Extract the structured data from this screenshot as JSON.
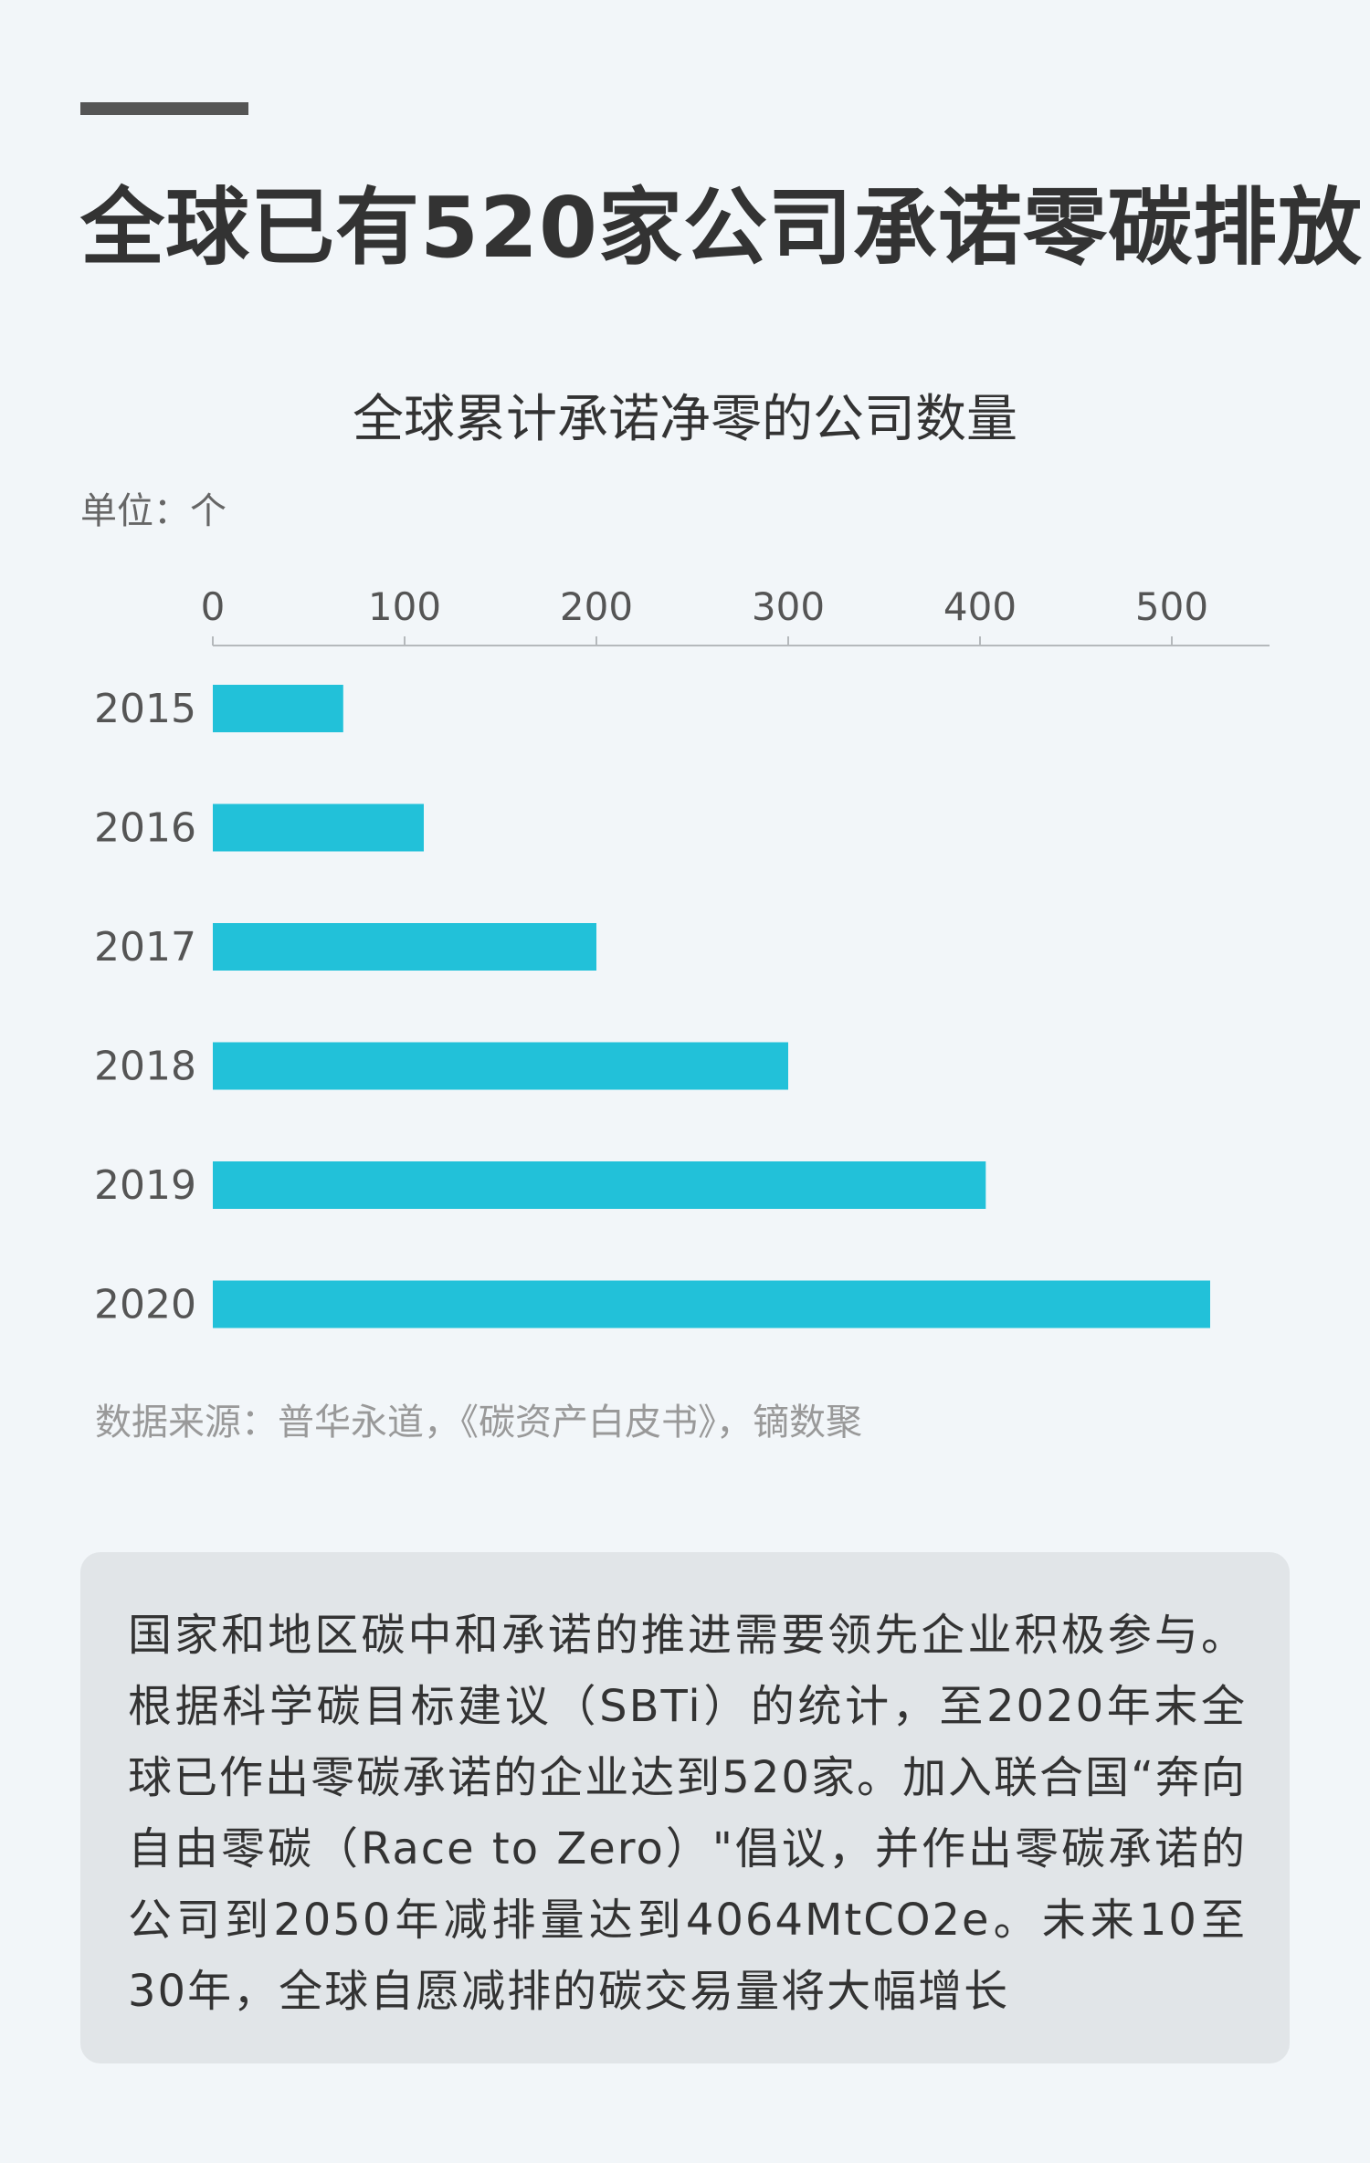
{
  "title": "全球已有520家公司承诺零碳排放",
  "chart": {
    "title": "全球累计承诺净零的公司数量",
    "unit": "单位：个"
  },
  "chart_data": {
    "type": "bar",
    "orientation": "horizontal",
    "title": "全球累计承诺净零的公司数量",
    "xlabel": "",
    "ylabel": "",
    "unit": "单位：个",
    "categories": [
      "2015",
      "2016",
      "2017",
      "2018",
      "2019",
      "2020"
    ],
    "values": [
      68,
      110,
      200,
      300,
      403,
      520
    ],
    "xlim": [
      0,
      550
    ],
    "ticks": [
      0,
      100,
      200,
      300,
      400,
      500
    ],
    "tick_labels": [
      "0",
      "100",
      "200",
      "300",
      "400",
      "500"
    ],
    "axis_position": "top",
    "bar_color": "#22c1d9",
    "grid": false,
    "legend": "none"
  },
  "source": "数据来源：普华永道，《碳资产白皮书》，镝数聚",
  "note": "国家和地区碳中和承诺的推进需要领先企业积极参与。根据科学碳目标建议（SBTi）的统计，至2020年末全球已作出零碳承诺的企业达到520家。加入联合国“奔向自由零碳（Race to Zero）\"倡议，并作出零碳承诺的公司到2050年减排量达到4064MtCO2e。未来10至30年，全球自愿减排的碳交易量将大幅增长",
  "colors": {
    "background": "#f2f6f9",
    "bar": "#22c1d9",
    "note_box": "#e1e5e8",
    "accent_bar": "#555555"
  }
}
